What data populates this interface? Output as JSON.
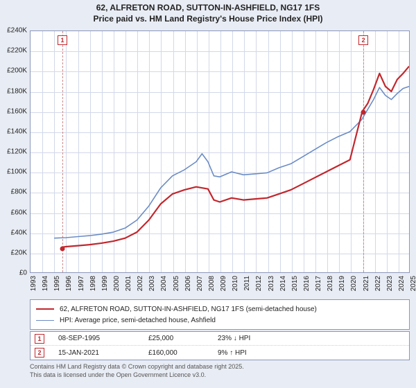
{
  "title_line1": "62, ALFRETON ROAD, SUTTON-IN-ASHFIELD, NG17 1FS",
  "title_line2": "Price paid vs. HM Land Registry's House Price Index (HPI)",
  "title_fontsize": 12,
  "background_color": "#e8ecf4",
  "plot_background": "#ffffff",
  "grid_color": "#d2d8e8",
  "axis_border_color": "#8a97ba",
  "y": {
    "min": 0,
    "max": 240000,
    "step": 20000,
    "format_prefix": "£",
    "format_thousands": "K",
    "ticks": [
      "£0",
      "£20K",
      "£40K",
      "£60K",
      "£80K",
      "£100K",
      "£120K",
      "£140K",
      "£160K",
      "£180K",
      "£200K",
      "£220K",
      "£240K"
    ]
  },
  "x": {
    "min": 1993,
    "max": 2025,
    "step": 1,
    "ticks": [
      "1993",
      "1994",
      "1995",
      "1996",
      "1997",
      "1998",
      "1999",
      "2000",
      "2001",
      "2002",
      "2003",
      "2004",
      "2005",
      "2006",
      "2007",
      "2008",
      "2009",
      "2010",
      "2011",
      "2012",
      "2013",
      "2014",
      "2015",
      "2016",
      "2017",
      "2018",
      "2019",
      "2020",
      "2021",
      "2022",
      "2023",
      "2024",
      "2025"
    ]
  },
  "series": [
    {
      "id": "price_paid",
      "label": "62, ALFRETON ROAD, SUTTON-IN-ASHFIELD, NG17 1FS (semi-detached house)",
      "color": "#c1272d",
      "width": 2.2,
      "data": [
        [
          1995.69,
          25000
        ],
        [
          1996,
          25500
        ],
        [
          1997,
          26500
        ],
        [
          1998,
          27500
        ],
        [
          1999,
          29000
        ],
        [
          2000,
          31000
        ],
        [
          2001,
          34000
        ],
        [
          2002,
          40000
        ],
        [
          2003,
          52000
        ],
        [
          2004,
          68000
        ],
        [
          2005,
          78000
        ],
        [
          2006,
          82000
        ],
        [
          2007,
          85000
        ],
        [
          2008,
          83000
        ],
        [
          2008.5,
          72000
        ],
        [
          2009,
          70000
        ],
        [
          2010,
          74000
        ],
        [
          2011,
          72000
        ],
        [
          2012,
          73000
        ],
        [
          2013,
          74000
        ],
        [
          2014,
          78000
        ],
        [
          2015,
          82000
        ],
        [
          2016,
          88000
        ],
        [
          2017,
          94000
        ],
        [
          2018,
          100000
        ],
        [
          2019,
          106000
        ],
        [
          2020,
          112000
        ],
        [
          2021.04,
          160000
        ],
        [
          2021.5,
          168000
        ],
        [
          2022,
          182000
        ],
        [
          2022.5,
          198000
        ],
        [
          2023,
          185000
        ],
        [
          2023.5,
          180000
        ],
        [
          2024,
          192000
        ],
        [
          2024.5,
          198000
        ],
        [
          2025,
          205000
        ]
      ]
    },
    {
      "id": "hpi",
      "label": "HPI: Average price, semi-detached house, Ashfield",
      "color": "#6b8cc4",
      "width": 1.6,
      "data": [
        [
          1995,
          34000
        ],
        [
          1996,
          34500
        ],
        [
          1997,
          35500
        ],
        [
          1998,
          36500
        ],
        [
          1999,
          38000
        ],
        [
          2000,
          40000
        ],
        [
          2001,
          44000
        ],
        [
          2002,
          52000
        ],
        [
          2003,
          66000
        ],
        [
          2004,
          84000
        ],
        [
          2005,
          96000
        ],
        [
          2006,
          102000
        ],
        [
          2007,
          110000
        ],
        [
          2007.5,
          118000
        ],
        [
          2008,
          110000
        ],
        [
          2008.5,
          96000
        ],
        [
          2009,
          95000
        ],
        [
          2010,
          100000
        ],
        [
          2011,
          97000
        ],
        [
          2012,
          98000
        ],
        [
          2013,
          99000
        ],
        [
          2014,
          104000
        ],
        [
          2015,
          108000
        ],
        [
          2016,
          115000
        ],
        [
          2017,
          122000
        ],
        [
          2018,
          129000
        ],
        [
          2019,
          135000
        ],
        [
          2020,
          140000
        ],
        [
          2021,
          152000
        ],
        [
          2022,
          172000
        ],
        [
          2022.5,
          184000
        ],
        [
          2023,
          176000
        ],
        [
          2023.5,
          172000
        ],
        [
          2024,
          178000
        ],
        [
          2024.5,
          183000
        ],
        [
          2025,
          185000
        ]
      ]
    }
  ],
  "markers": [
    {
      "n": "1",
      "x": 1995.69,
      "y": 25000,
      "date": "08-SEP-1995",
      "price": "£25,000",
      "delta": "23% ↓ HPI"
    },
    {
      "n": "2",
      "x": 2021.04,
      "y": 160000,
      "date": "15-JAN-2021",
      "price": "£160,000",
      "delta": "9% ↑ HPI"
    }
  ],
  "legend_rows": [
    {
      "color": "#c1272d",
      "width": 2.2,
      "label_key": "series.0.label"
    },
    {
      "color": "#6b8cc4",
      "width": 1.6,
      "label_key": "series.1.label"
    }
  ],
  "footnote_line1": "Contains HM Land Registry data © Crown copyright and database right 2025.",
  "footnote_line2": "This data is licensed under the Open Government Licence v3.0."
}
